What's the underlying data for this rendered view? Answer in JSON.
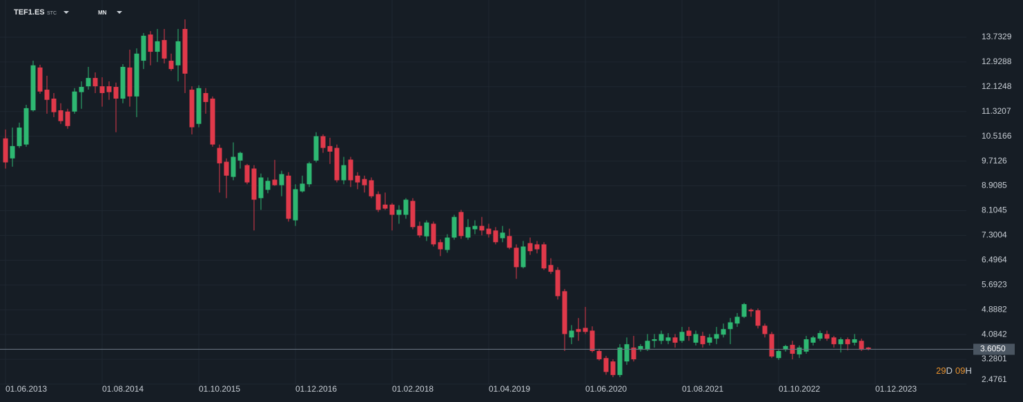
{
  "header": {
    "symbol": "TEF1.ES",
    "market": "STC",
    "interval": "MN"
  },
  "countdown": {
    "days": "29",
    "days_unit": "D",
    "hours": "09",
    "hours_unit": "H"
  },
  "chart_data": {
    "type": "candlestick",
    "up_color": "#2eb872",
    "down_color": "#e0394a",
    "grid": true,
    "ylim": [
      2.4761,
      14.94
    ],
    "xlim": [
      -0.8,
      139.2
    ],
    "yticks": [
      13.7329,
      12.9288,
      12.1248,
      11.3207,
      10.5166,
      9.7126,
      8.9085,
      8.1045,
      7.3004,
      6.4964,
      5.6923,
      4.8882,
      4.0842,
      3.2801,
      2.4761
    ],
    "xticks": [
      {
        "value": 0,
        "label": "01.06.2013"
      },
      {
        "value": 14,
        "label": "01.08.2014"
      },
      {
        "value": 28,
        "label": "01.10.2015"
      },
      {
        "value": 42,
        "label": "01.12.2016"
      },
      {
        "value": 56,
        "label": "01.02.2018"
      },
      {
        "value": 70,
        "label": "01.04.2019"
      },
      {
        "value": 84,
        "label": "01.06.2020"
      },
      {
        "value": 98,
        "label": "01.08.2021"
      },
      {
        "value": 112,
        "label": "01.10.2022"
      },
      {
        "value": 126,
        "label": "01.12.2023"
      }
    ],
    "price_line": {
      "value": 3.605,
      "label": "3.6050"
    },
    "open": [
      10.45,
      9.8,
      10.2,
      10.25,
      11.36,
      12.75,
      12.03,
      11.74,
      11.36,
      11.32,
      11.32,
      11.95,
      12.14,
      12.41,
      12.14,
      12.14,
      12.12,
      11.74,
      12.75,
      11.81,
      12.97,
      13.82,
      13.26,
      13.64,
      12.97,
      12.82,
      14.0,
      12.03,
      10.92,
      11.92,
      11.74,
      10.14,
      9.69,
      9.2,
      9.73,
      9.58,
      9.47,
      8.51,
      8.78,
      9.11,
      8.93,
      9.24,
      7.79,
      8.73,
      8.96,
      9.73,
      10.52,
      10.2,
      10.14,
      9.09,
      9.76,
      9.24,
      9.13,
      9.09,
      8.64,
      8.3,
      8.3,
      7.97,
      7.97,
      8.42,
      7.61,
      7.27,
      7.68,
      7.08,
      6.83,
      7.23,
      8.06,
      7.23,
      7.5,
      7.61,
      7.52,
      7.46,
      7.21,
      7.28,
      6.9,
      6.27,
      7.05,
      7.01,
      7.01,
      6.34,
      6.18,
      5.49,
      3.99,
      4.26,
      4.3,
      4.21,
      3.55,
      3.32,
      3.21,
      2.77,
      3.21,
      3.66,
      3.59,
      3.59,
      3.88,
      3.88,
      3.88,
      3.99,
      3.88,
      4.21,
      3.82,
      4.04,
      3.82,
      3.95,
      4.08,
      4.26,
      4.44,
      4.66,
      4.89,
      4.87,
      4.37,
      4.1,
      3.32,
      3.59,
      3.75,
      3.44,
      3.53,
      3.82,
      3.95,
      4.1,
      3.99,
      3.77,
      3.93,
      3.82,
      3.88,
      3.66
    ],
    "high": [
      10.74,
      10.8,
      10.96,
      11.54,
      12.97,
      12.84,
      12.48,
      11.92,
      11.59,
      11.41,
      12.08,
      12.3,
      12.77,
      12.59,
      12.43,
      12.3,
      12.26,
      12.86,
      13.33,
      13.37,
      13.87,
      13.93,
      14.0,
      14.0,
      13.2,
      14.0,
      14.31,
      12.14,
      12.17,
      12.08,
      11.81,
      10.25,
      9.8,
      10.32,
      10.02,
      9.62,
      9.58,
      9.31,
      9.18,
      9.75,
      9.4,
      9.35,
      8.96,
      9.24,
      9.69,
      10.65,
      10.58,
      10.47,
      10.25,
      9.85,
      9.85,
      9.35,
      9.24,
      9.18,
      8.73,
      8.69,
      8.35,
      8.28,
      8.51,
      8.51,
      7.75,
      7.79,
      7.75,
      7.17,
      7.34,
      7.97,
      8.13,
      7.83,
      7.79,
      7.9,
      7.68,
      7.57,
      7.61,
      7.52,
      7.01,
      7.12,
      7.23,
      7.12,
      7.08,
      6.56,
      6.27,
      5.56,
      4.39,
      4.62,
      4.98,
      4.35,
      3.62,
      3.39,
      3.28,
      3.77,
      3.99,
      4.04,
      3.77,
      4.1,
      4.1,
      4.21,
      4.13,
      4.1,
      4.33,
      4.33,
      4.21,
      4.17,
      4.1,
      4.33,
      4.44,
      4.62,
      4.78,
      5.11,
      4.93,
      4.93,
      4.44,
      4.17,
      3.59,
      3.75,
      3.88,
      3.73,
      4.04,
      4.04,
      4.21,
      4.21,
      4.04,
      3.99,
      3.99,
      4.1,
      3.95,
      3.68
    ],
    "low": [
      9.47,
      9.53,
      10.14,
      10.18,
      11.32,
      11.9,
      11.25,
      11.14,
      10.92,
      10.76,
      11.25,
      11.41,
      12.03,
      11.92,
      11.48,
      11.7,
      10.65,
      11.59,
      11.48,
      11.14,
      12.7,
      12.82,
      12.93,
      12.88,
      12.64,
      12.3,
      11.92,
      10.58,
      10.81,
      11.25,
      10.18,
      8.69,
      8.51,
      9.09,
      9.47,
      8.96,
      7.46,
      8.13,
      8.67,
      8.91,
      8.57,
      7.75,
      7.61,
      8.69,
      8.87,
      9.67,
      9.98,
      9.62,
      9.02,
      8.96,
      8.87,
      8.8,
      8.69,
      8.51,
      8.06,
      8.13,
      7.46,
      7.68,
      7.84,
      7.5,
      7.23,
      7.12,
      6.94,
      6.63,
      6.74,
      7.16,
      7.19,
      7.16,
      7.34,
      7.3,
      7.23,
      7.01,
      7.08,
      6.85,
      5.89,
      6.23,
      6.67,
      6.72,
      6.18,
      6.05,
      5.22,
      3.55,
      3.77,
      3.88,
      4.1,
      3.5,
      3.24,
      2.78,
      2.7,
      2.7,
      3.1,
      3.21,
      3.53,
      3.55,
      3.66,
      3.77,
      3.77,
      3.66,
      3.82,
      3.88,
      3.73,
      3.66,
      3.73,
      3.77,
      3.99,
      3.77,
      4.33,
      4.62,
      4.66,
      4.28,
      3.99,
      3.32,
      3.26,
      3.53,
      3.28,
      3.32,
      3.46,
      3.73,
      3.88,
      3.88,
      3.66,
      3.5,
      3.57,
      3.73,
      3.55,
      3.57
    ],
    "close": [
      9.67,
      10.2,
      10.8,
      11.43,
      12.82,
      11.97,
      11.7,
      11.3,
      11.01,
      10.85,
      11.97,
      12.12,
      12.41,
      12.14,
      11.92,
      11.95,
      11.74,
      12.77,
      11.81,
      13.2,
      13.78,
      13.26,
      13.6,
      13.04,
      12.7,
      13.6,
      12.55,
      10.81,
      12.08,
      11.63,
      10.25,
      9.64,
      9.24,
      9.85,
      9.98,
      9.02,
      8.46,
      9.18,
      9.07,
      8.93,
      9.29,
      7.84,
      8.8,
      8.98,
      9.64,
      10.52,
      10.14,
      10.02,
      9.09,
      9.58,
      9.09,
      9.02,
      8.93,
      8.57,
      8.13,
      8.17,
      7.97,
      8.13,
      8.46,
      7.57,
      7.3,
      7.72,
      7.01,
      6.85,
      7.23,
      7.9,
      7.28,
      7.57,
      7.61,
      7.46,
      7.34,
      7.08,
      7.39,
      6.9,
      6.27,
      6.94,
      6.79,
      6.85,
      6.23,
      6.12,
      5.33,
      4.1,
      4.21,
      4.17,
      4.17,
      3.55,
      3.28,
      2.87,
      2.77,
      3.66,
      3.77,
      3.28,
      3.71,
      3.88,
      3.93,
      4.1,
      3.99,
      3.82,
      4.17,
      4.04,
      4.1,
      3.77,
      3.99,
      4.1,
      4.26,
      4.48,
      4.66,
      5.07,
      4.84,
      4.37,
      4.1,
      3.37,
      3.55,
      3.71,
      3.46,
      3.66,
      3.93,
      3.99,
      4.13,
      3.95,
      3.77,
      3.93,
      3.77,
      3.93,
      3.59,
      3.605
    ]
  }
}
